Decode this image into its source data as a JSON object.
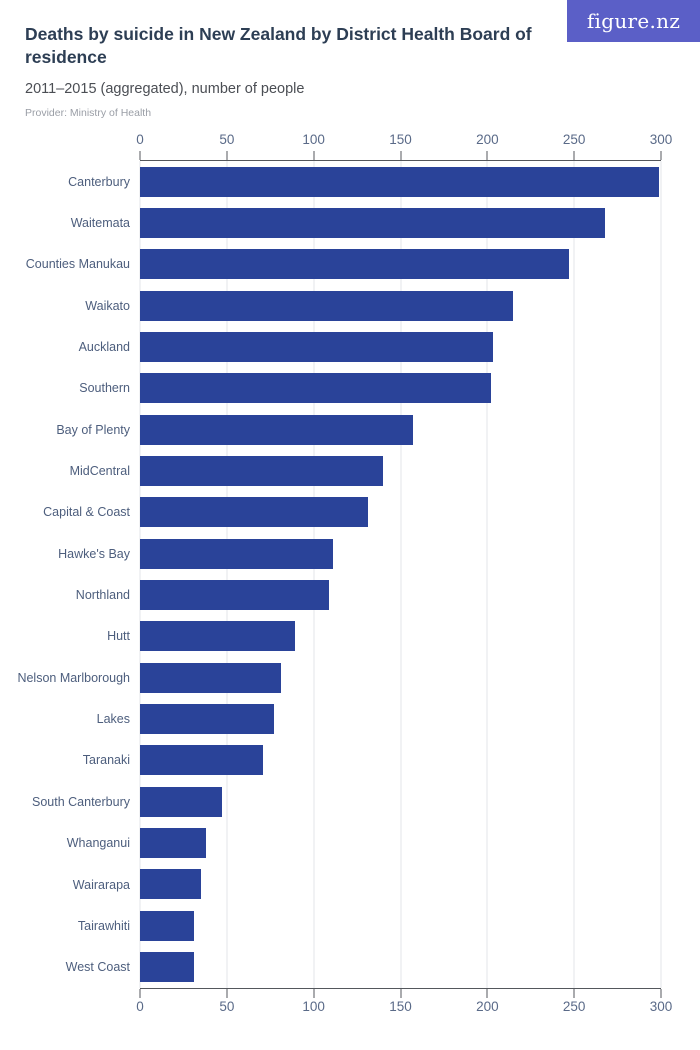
{
  "logo": {
    "text": "figure.nz",
    "background": "#5b5fc7"
  },
  "header": {
    "title": "Deaths by suicide in New Zealand by District Health Board of residence",
    "subtitle": "2011–2015 (aggregated), number of people",
    "provider": "Provider: Ministry of Health"
  },
  "chart_data": {
    "type": "bar",
    "orientation": "horizontal",
    "title": "Deaths by suicide in New Zealand by District Health Board of residence",
    "subtitle": "2011–2015 (aggregated), number of people",
    "xlabel": "number of people",
    "ylabel": "District Health Board of residence",
    "categories": [
      "Canterbury",
      "Waitemata",
      "Counties Manukau",
      "Waikato",
      "Auckland",
      "Southern",
      "Bay of Plenty",
      "MidCentral",
      "Capital & Coast",
      "Hawke's Bay",
      "Northland",
      "Hutt",
      "Nelson Marlborough",
      "Lakes",
      "Taranaki",
      "South Canterbury",
      "Whanganui",
      "Wairarapa",
      "Tairawhiti",
      "West Coast"
    ],
    "values": [
      299,
      268,
      247,
      215,
      203,
      202,
      157,
      140,
      131,
      111,
      109,
      89,
      81,
      77,
      71,
      47,
      38,
      35,
      31,
      31
    ],
    "xlim": [
      0,
      300
    ],
    "x_ticks": [
      0,
      50,
      100,
      150,
      200,
      250,
      300
    ],
    "grid": true,
    "axis_label_positions": [
      "top",
      "bottom"
    ],
    "legend": "none",
    "bar_color": "#2a4399",
    "grid_color": "#e3e5e9",
    "axis_color": "#54575c",
    "category_label_color": "#4d5e7d",
    "tick_label_color": "#5a6a88"
  }
}
